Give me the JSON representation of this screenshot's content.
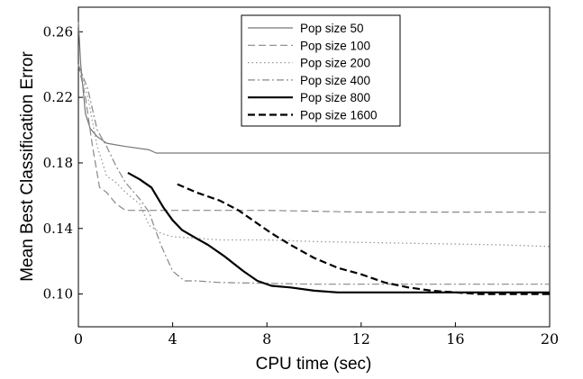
{
  "chart_data": {
    "type": "line",
    "title": "",
    "xlabel": "CPU time (sec)",
    "ylabel": "Mean Best Classification Error",
    "xlim": [
      0,
      20
    ],
    "ylim": [
      0.08,
      0.275
    ],
    "x_ticks": [
      0,
      4,
      8,
      12,
      16,
      20
    ],
    "x_tick_labels": [
      "0",
      "4",
      "8",
      "12",
      "16",
      "20"
    ],
    "y_ticks": [
      0.1,
      0.14,
      0.18,
      0.22,
      0.26
    ],
    "y_tick_labels": [
      "0.10",
      "0.14",
      "0.18",
      "0.22",
      "0.26"
    ],
    "grid": false,
    "legend_position": "top-right",
    "series": [
      {
        "name": "Pop size 50",
        "color": "#777777",
        "style": "solid",
        "width": 1.2,
        "points": [
          [
            0,
            0.266
          ],
          [
            0.1,
            0.24
          ],
          [
            0.3,
            0.21
          ],
          [
            0.5,
            0.201
          ],
          [
            0.8,
            0.196
          ],
          [
            1.2,
            0.192
          ],
          [
            2,
            0.19
          ],
          [
            3,
            0.188
          ],
          [
            3.3,
            0.186
          ],
          [
            5,
            0.186
          ],
          [
            10,
            0.186
          ],
          [
            15,
            0.186
          ],
          [
            20,
            0.186
          ]
        ]
      },
      {
        "name": "Pop size 100",
        "color": "#888888",
        "style": "dashed",
        "width": 1.2,
        "points": [
          [
            0,
            0.24
          ],
          [
            0.3,
            0.22
          ],
          [
            0.6,
            0.19
          ],
          [
            0.9,
            0.165
          ],
          [
            1.2,
            0.162
          ],
          [
            1.6,
            0.155
          ],
          [
            2,
            0.151
          ],
          [
            4,
            0.151
          ],
          [
            8,
            0.151
          ],
          [
            12,
            0.15
          ],
          [
            16,
            0.15
          ],
          [
            20,
            0.15
          ]
        ]
      },
      {
        "name": "Pop size 200",
        "color": "#999999",
        "style": "dotted",
        "width": 1.3,
        "points": [
          [
            0,
            0.24
          ],
          [
            0.4,
            0.22
          ],
          [
            0.8,
            0.19
          ],
          [
            1.2,
            0.172
          ],
          [
            1.6,
            0.168
          ],
          [
            2,
            0.162
          ],
          [
            2.6,
            0.155
          ],
          [
            3,
            0.142
          ],
          [
            3.5,
            0.137
          ],
          [
            4,
            0.135
          ],
          [
            5,
            0.134
          ],
          [
            6,
            0.133
          ],
          [
            8,
            0.133
          ],
          [
            10,
            0.132
          ],
          [
            14,
            0.131
          ],
          [
            18,
            0.13
          ],
          [
            20,
            0.129
          ]
        ]
      },
      {
        "name": "Pop size 400",
        "color": "#888888",
        "style": "dashdot",
        "width": 1.2,
        "points": [
          [
            0,
            0.24
          ],
          [
            0.4,
            0.225
          ],
          [
            0.8,
            0.2
          ],
          [
            1.2,
            0.19
          ],
          [
            1.6,
            0.178
          ],
          [
            2,
            0.168
          ],
          [
            2.6,
            0.158
          ],
          [
            3,
            0.15
          ],
          [
            3.5,
            0.13
          ],
          [
            4,
            0.114
          ],
          [
            4.5,
            0.108
          ],
          [
            5,
            0.108
          ],
          [
            6,
            0.107
          ],
          [
            10,
            0.106
          ],
          [
            14,
            0.106
          ],
          [
            20,
            0.106
          ]
        ]
      },
      {
        "name": "Pop size 800",
        "color": "#000000",
        "style": "solid",
        "width": 2.2,
        "points": [
          [
            2.1,
            0.174
          ],
          [
            2.6,
            0.17
          ],
          [
            3.1,
            0.165
          ],
          [
            3.6,
            0.153
          ],
          [
            4,
            0.145
          ],
          [
            4.4,
            0.139
          ],
          [
            5,
            0.134
          ],
          [
            5.5,
            0.13
          ],
          [
            6.2,
            0.123
          ],
          [
            7,
            0.114
          ],
          [
            7.6,
            0.108
          ],
          [
            8.2,
            0.105
          ],
          [
            9,
            0.104
          ],
          [
            10,
            0.102
          ],
          [
            11,
            0.101
          ],
          [
            14,
            0.101
          ],
          [
            17,
            0.101
          ],
          [
            20,
            0.101
          ]
        ]
      },
      {
        "name": "Pop size 1600",
        "color": "#000000",
        "style": "dashed",
        "width": 2.2,
        "points": [
          [
            4.2,
            0.167
          ],
          [
            5,
            0.162
          ],
          [
            6,
            0.157
          ],
          [
            6.8,
            0.151
          ],
          [
            7.5,
            0.144
          ],
          [
            8.2,
            0.137
          ],
          [
            9,
            0.13
          ],
          [
            10,
            0.122
          ],
          [
            11,
            0.116
          ],
          [
            12,
            0.112
          ],
          [
            13,
            0.107
          ],
          [
            14,
            0.104
          ],
          [
            15,
            0.102
          ],
          [
            16,
            0.101
          ],
          [
            17,
            0.1
          ],
          [
            18,
            0.1
          ],
          [
            20,
            0.1
          ]
        ]
      }
    ]
  }
}
